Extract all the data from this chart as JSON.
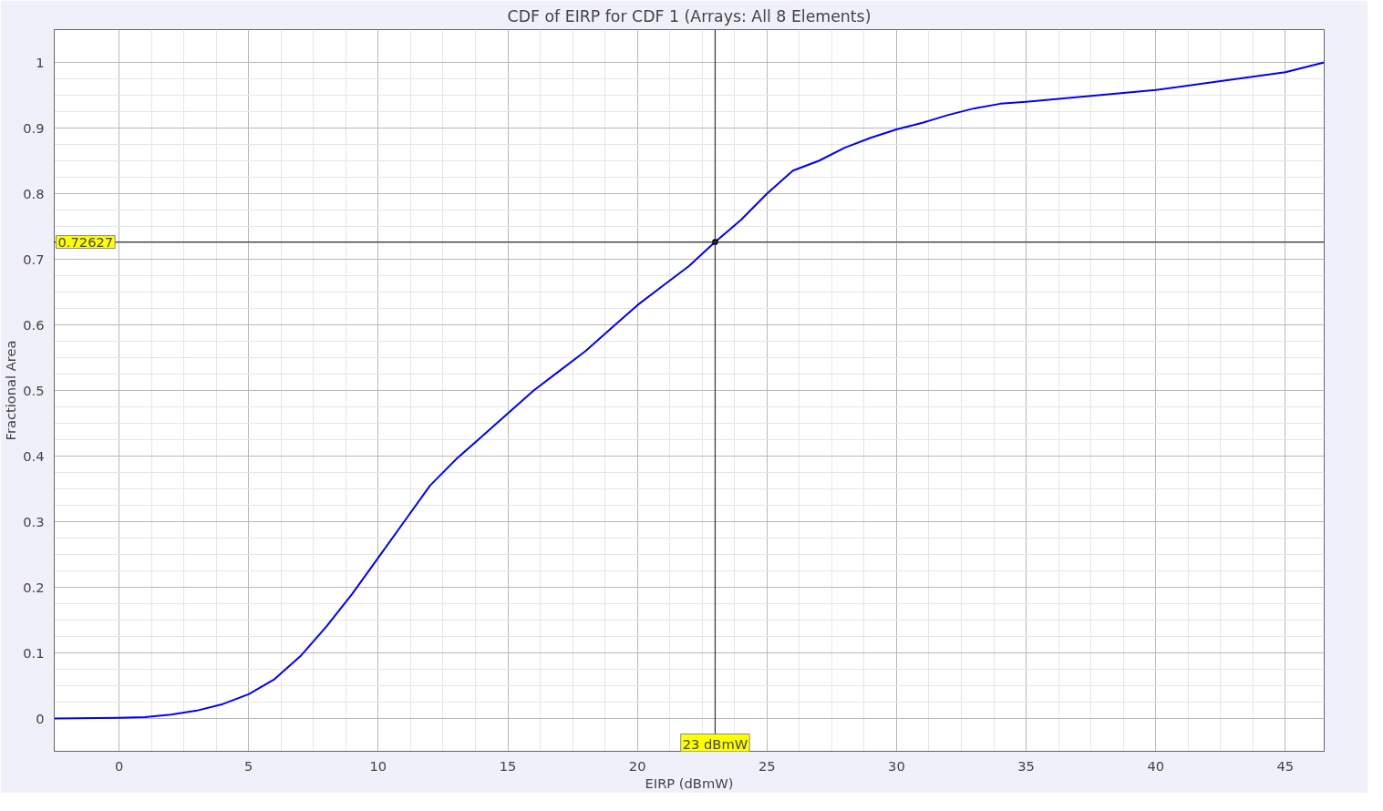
{
  "chart_data": {
    "type": "line",
    "title": "CDF of EIRP for CDF 1 (Arrays: All 8 Elements)",
    "xlabel": "EIRP (dBmW)",
    "ylabel": "Fractional Area",
    "x": [
      -2.5,
      0,
      1,
      2,
      3,
      4,
      5,
      6,
      7,
      8,
      9,
      10,
      11,
      12,
      13,
      14,
      15,
      16,
      17,
      18,
      19,
      20,
      21,
      22,
      23,
      24,
      25,
      26,
      27,
      28,
      29,
      30,
      31,
      32,
      33,
      34,
      35,
      40,
      45,
      46.5
    ],
    "series": [
      {
        "color": "#0000ff",
        "values": [
          0,
          0.001,
          0.002,
          0.006,
          0.012,
          0.022,
          0.037,
          0.06,
          0.095,
          0.14,
          0.19,
          0.245,
          0.3,
          0.355,
          0.395,
          0.43,
          0.465,
          0.5,
          0.53,
          0.56,
          0.595,
          0.63,
          0.66,
          0.69,
          0.72627,
          0.76,
          0.8,
          0.835,
          0.85,
          0.87,
          0.885,
          0.898,
          0.908,
          0.92,
          0.93,
          0.937,
          0.94,
          0.958,
          0.985,
          1.0
        ]
      }
    ],
    "xlim": [
      -2.5,
      46.5
    ],
    "ylim": [
      -0.05,
      1.05
    ],
    "xticks": [
      0,
      5,
      10,
      15,
      20,
      25,
      30,
      35,
      40,
      45
    ],
    "yticks": [
      0,
      0.1,
      0.2,
      0.3,
      0.4,
      0.5,
      0.6,
      0.7,
      0.8,
      0.9,
      1
    ],
    "grid": true,
    "marker": "none",
    "line_style": "solid",
    "ref_lines": [
      {
        "axis": "x",
        "value": 23,
        "label": "23 dBmW",
        "color": "#333333"
      },
      {
        "axis": "y",
        "value": 0.72627,
        "label": "0.72627",
        "color": "#333333"
      }
    ]
  }
}
